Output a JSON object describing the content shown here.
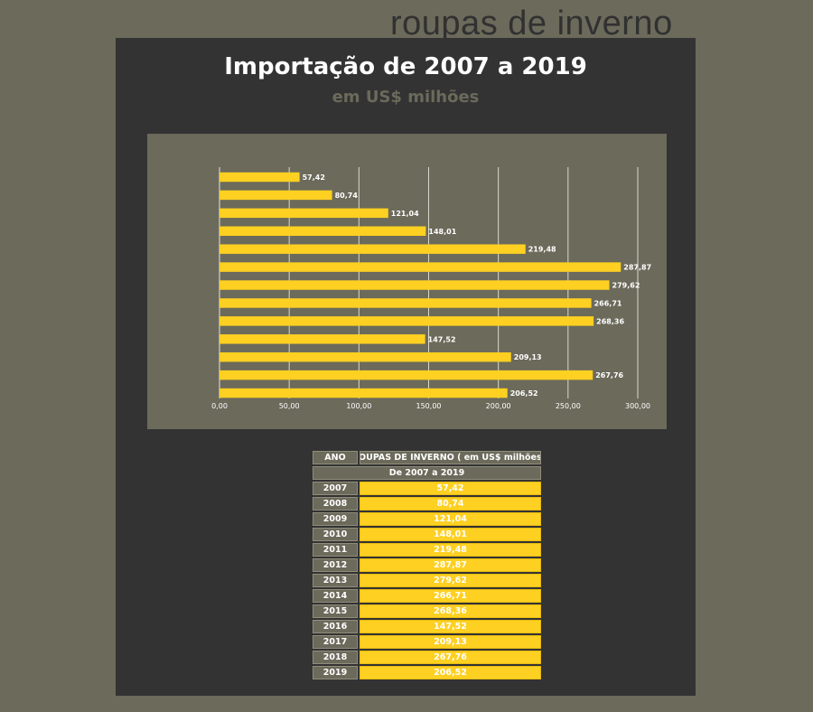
{
  "brand": "roupas de inverno",
  "title": "Importação de 2007 a 2019",
  "subtitle": "em US$ milhões",
  "colors": {
    "background": "#6b6a5b",
    "panel": "#333333",
    "bar": "#fdd021",
    "gridline": "#d9d8cc"
  },
  "chart_data": {
    "type": "bar",
    "orientation": "horizontal",
    "categories": [
      "2007",
      "2008",
      "2009",
      "2010",
      "2011",
      "2012",
      "2013",
      "2014",
      "2015",
      "2016",
      "2017",
      "2018",
      "2019"
    ],
    "values": [
      57.42,
      80.74,
      121.04,
      148.01,
      219.48,
      287.87,
      279.62,
      266.71,
      268.36,
      147.52,
      209.13,
      267.76,
      206.52
    ],
    "data_labels": [
      "57,42",
      "80,74",
      "121,04",
      "148,01",
      "219,48",
      "287,87",
      "279,62",
      "266,71",
      "268,36",
      "147,52",
      "209,13",
      "267,76",
      "206,52"
    ],
    "xlim": [
      0,
      300
    ],
    "x_ticks": [
      "0,00",
      "50,00",
      "100,00",
      "150,00",
      "200,00",
      "250,00",
      "300,00"
    ],
    "grid": true,
    "category_labels_shown": false,
    "legend": "none"
  },
  "table": {
    "header_year": "ANO",
    "header_value": "ROUPAS DE INVERNO ( em US$ milhões )",
    "span_label": "De 2007 a 2019",
    "rows": [
      {
        "year": "2007",
        "value": "57,42"
      },
      {
        "year": "2008",
        "value": "80,74"
      },
      {
        "year": "2009",
        "value": "121,04"
      },
      {
        "year": "2010",
        "value": "148,01"
      },
      {
        "year": "2011",
        "value": "219,48"
      },
      {
        "year": "2012",
        "value": "287,87"
      },
      {
        "year": "2013",
        "value": "279,62"
      },
      {
        "year": "2014",
        "value": "266,71"
      },
      {
        "year": "2015",
        "value": "268,36"
      },
      {
        "year": "2016",
        "value": "147,52"
      },
      {
        "year": "2017",
        "value": "209,13"
      },
      {
        "year": "2018",
        "value": "267,76"
      },
      {
        "year": "2019",
        "value": "206,52"
      }
    ]
  }
}
